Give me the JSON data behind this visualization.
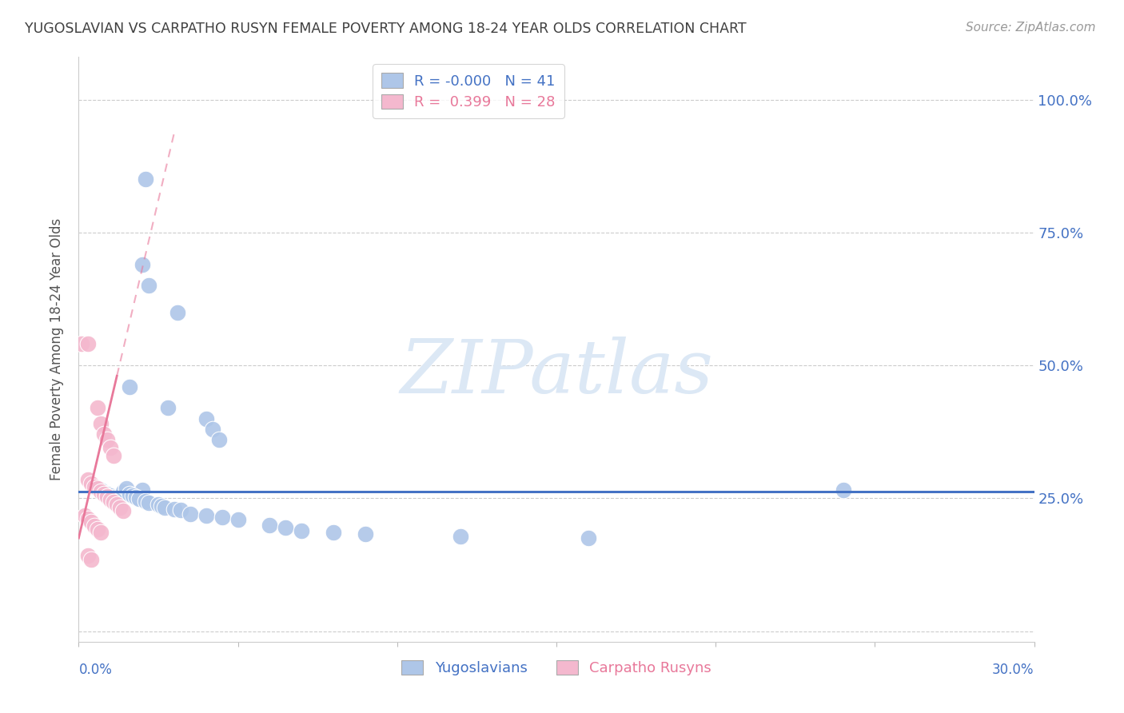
{
  "title": "YUGOSLAVIAN VS CARPATHO RUSYN FEMALE POVERTY AMONG 18-24 YEAR OLDS CORRELATION CHART",
  "source": "Source: ZipAtlas.com",
  "ylabel": "Female Poverty Among 18-24 Year Olds",
  "y_ticks": [
    0.0,
    0.25,
    0.5,
    0.75,
    1.0
  ],
  "y_tick_labels": [
    "",
    "25.0%",
    "50.0%",
    "75.0%",
    "100.0%"
  ],
  "x_lim": [
    0.0,
    0.3
  ],
  "y_lim": [
    -0.02,
    1.08
  ],
  "legend_blue_R": "-0.000",
  "legend_blue_N": "41",
  "legend_pink_R": "0.399",
  "legend_pink_N": "28",
  "blue_color": "#aec6e8",
  "pink_color": "#f4b8ce",
  "trendline_blue_color": "#4472c4",
  "trendline_pink_color": "#e8789a",
  "axis_color": "#4472c4",
  "title_color": "#404040",
  "watermark_text": "ZIPatlas",
  "watermark_color": "#dce8f5",
  "blue_scatter": [
    [
      0.021,
      0.85
    ],
    [
      0.02,
      0.69
    ],
    [
      0.022,
      0.65
    ],
    [
      0.031,
      0.6
    ],
    [
      0.016,
      0.46
    ],
    [
      0.028,
      0.42
    ],
    [
      0.04,
      0.4
    ],
    [
      0.042,
      0.38
    ],
    [
      0.044,
      0.36
    ],
    [
      0.02,
      0.265
    ],
    [
      0.007,
      0.265
    ],
    [
      0.008,
      0.26
    ],
    [
      0.009,
      0.258
    ],
    [
      0.01,
      0.255
    ],
    [
      0.011,
      0.252
    ],
    [
      0.012,
      0.25
    ],
    [
      0.014,
      0.262
    ],
    [
      0.015,
      0.268
    ],
    [
      0.016,
      0.258
    ],
    [
      0.017,
      0.255
    ],
    [
      0.018,
      0.252
    ],
    [
      0.019,
      0.249
    ],
    [
      0.021,
      0.245
    ],
    [
      0.022,
      0.242
    ],
    [
      0.025,
      0.238
    ],
    [
      0.026,
      0.235
    ],
    [
      0.027,
      0.232
    ],
    [
      0.03,
      0.23
    ],
    [
      0.032,
      0.228
    ],
    [
      0.035,
      0.22
    ],
    [
      0.04,
      0.218
    ],
    [
      0.045,
      0.215
    ],
    [
      0.05,
      0.21
    ],
    [
      0.06,
      0.2
    ],
    [
      0.065,
      0.195
    ],
    [
      0.07,
      0.188
    ],
    [
      0.08,
      0.185
    ],
    [
      0.09,
      0.182
    ],
    [
      0.12,
      0.178
    ],
    [
      0.16,
      0.175
    ],
    [
      0.24,
      0.265
    ]
  ],
  "pink_scatter": [
    [
      0.001,
      0.54
    ],
    [
      0.003,
      0.54
    ],
    [
      0.006,
      0.42
    ],
    [
      0.007,
      0.39
    ],
    [
      0.008,
      0.37
    ],
    [
      0.009,
      0.36
    ],
    [
      0.01,
      0.345
    ],
    [
      0.011,
      0.33
    ],
    [
      0.003,
      0.285
    ],
    [
      0.004,
      0.278
    ],
    [
      0.005,
      0.272
    ],
    [
      0.006,
      0.268
    ],
    [
      0.007,
      0.262
    ],
    [
      0.008,
      0.258
    ],
    [
      0.009,
      0.253
    ],
    [
      0.01,
      0.248
    ],
    [
      0.011,
      0.243
    ],
    [
      0.012,
      0.238
    ],
    [
      0.013,
      0.232
    ],
    [
      0.014,
      0.227
    ],
    [
      0.002,
      0.218
    ],
    [
      0.003,
      0.212
    ],
    [
      0.004,
      0.205
    ],
    [
      0.005,
      0.198
    ],
    [
      0.006,
      0.192
    ],
    [
      0.007,
      0.185
    ],
    [
      0.003,
      0.142
    ],
    [
      0.004,
      0.135
    ]
  ],
  "blue_trendline_x": [
    0.0,
    0.3
  ],
  "blue_trendline_y": [
    0.262,
    0.262
  ],
  "pink_trendline_x": [
    0.0,
    0.012
  ],
  "pink_trendline_y": [
    0.175,
    0.48
  ]
}
